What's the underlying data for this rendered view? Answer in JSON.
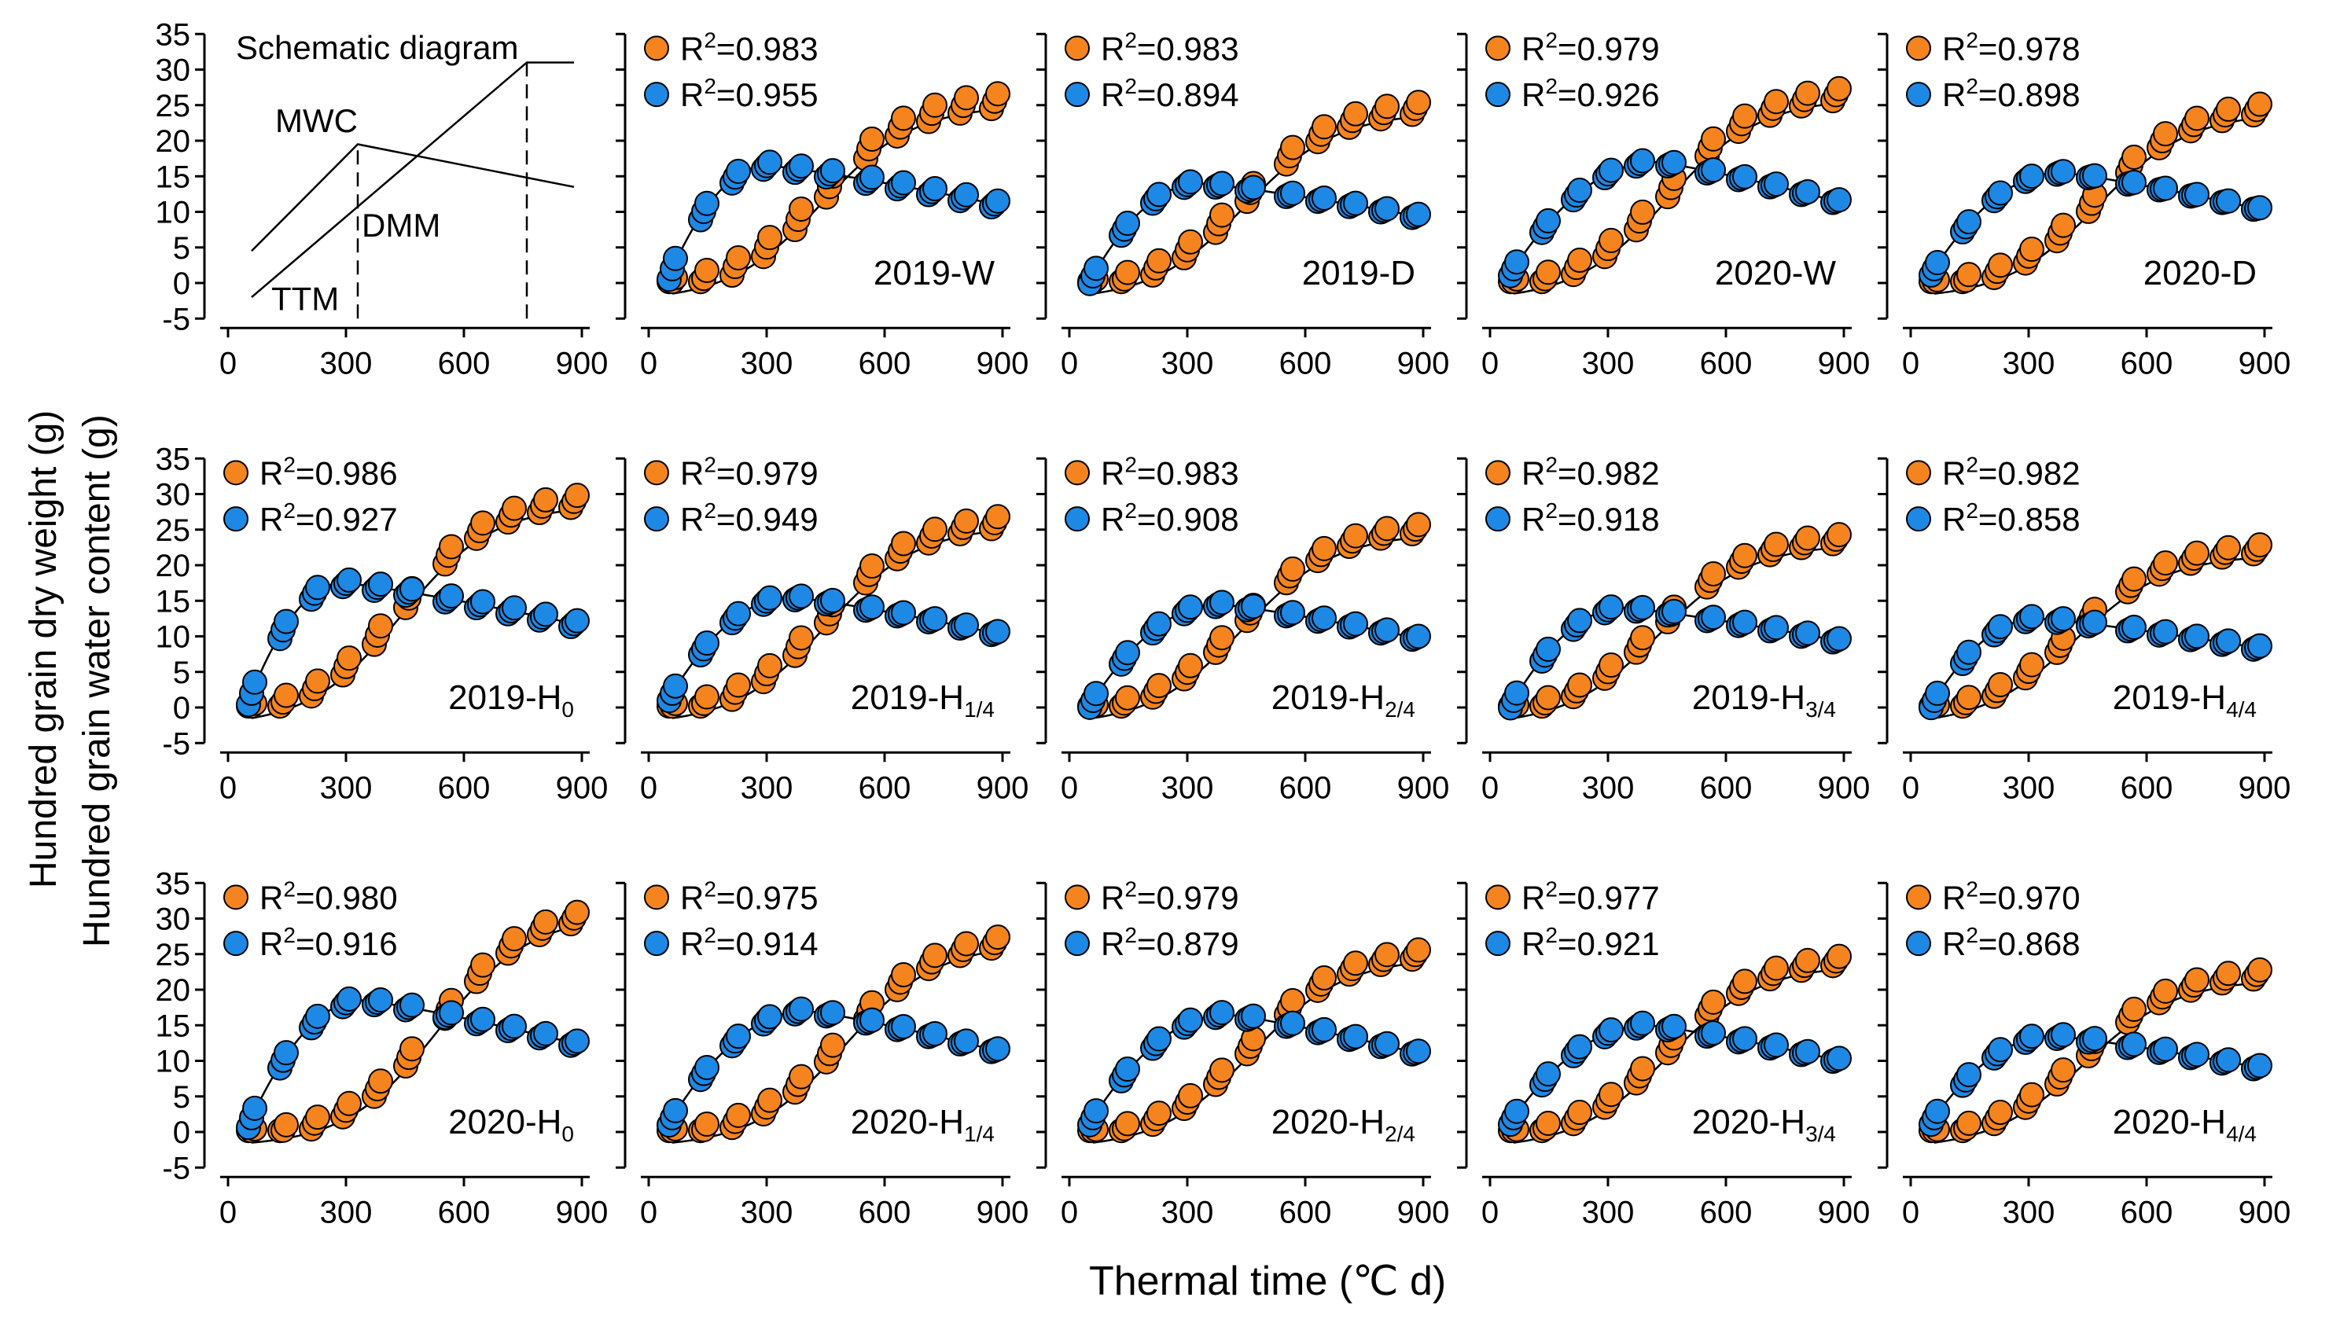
{
  "figure": {
    "ylabel_line1": "Hundred grain dry weight (g)",
    "ylabel_line2": "Hundred grain water content (g)",
    "xlabel": "Thermal time (℃ d)",
    "colors": {
      "dry_weight": "#F5841F",
      "water_content": "#1E88E5",
      "line": "#000000"
    }
  },
  "chart_data": [
    {
      "type": "line",
      "panel": "schematic",
      "title": "Schematic diagram",
      "labels": [
        "MWC",
        "DMM",
        "TTM"
      ],
      "xlim": [
        -60,
        900
      ],
      "ylim": [
        -5,
        35
      ],
      "xticks": [
        0,
        300,
        600,
        900
      ],
      "yticks": [
        -5,
        0,
        5,
        10,
        15,
        20,
        25,
        30,
        35
      ],
      "lines": [
        {
          "name": "DMM",
          "x": [
            60,
            760,
            880
          ],
          "y": [
            -2,
            31,
            31
          ]
        },
        {
          "name": "MWC",
          "x": [
            60,
            330,
            880
          ],
          "y": [
            4.5,
            19.5,
            13.5
          ]
        }
      ],
      "dashed": [
        {
          "x": 330,
          "y": [
            -5,
            19.5
          ]
        },
        {
          "x": 760,
          "y": [
            -5,
            31
          ]
        }
      ]
    },
    {
      "type": "scatter",
      "label": "2019-W",
      "r2": [
        "R²=0.983",
        "R²=0.955"
      ],
      "dmm": 26.5,
      "xtm": 760,
      "ymax": 16.5,
      "xmax": 300,
      "ymin_start": 2,
      "dw_bias": 1.0,
      "mwc_bias": 0.5
    },
    {
      "type": "scatter",
      "label": "2019-D",
      "r2": [
        "R²=0.983",
        "R²=0.894"
      ],
      "dmm": 25.5,
      "xtm": 770,
      "ymax": 14,
      "xmax": 330,
      "ymin_start": 1,
      "dw_bias": 0.8,
      "mwc_bias": 0.3
    },
    {
      "type": "scatter",
      "label": "2020-W",
      "r2": [
        "R²=0.979",
        "R²=0.926"
      ],
      "dmm": 27.5,
      "xtm": 780,
      "ymax": 17,
      "xmax": 420,
      "ymin_start": 2,
      "dw_bias": 0.8,
      "mwc_bias": 0.3
    },
    {
      "type": "scatter",
      "label": "2020-D",
      "r2": [
        "R²=0.978",
        "R²=0.898"
      ],
      "dmm": 25.5,
      "xtm": 820,
      "ymax": 15.5,
      "xmax": 380,
      "ymin_start": 2,
      "dw_bias": 0.7,
      "mwc_bias": 0.2
    },
    {
      "type": "scatter",
      "label": "2019-H",
      "sub": "0",
      "r2": [
        "R²=0.986",
        "R²=0.927"
      ],
      "dmm": 30,
      "xtm": 760,
      "ymax": 17.5,
      "xmax": 290,
      "ymin_start": 2,
      "dw_bias": 0.8,
      "mwc_bias": 0.5
    },
    {
      "type": "scatter",
      "label": "2019-H",
      "sub": "1/4",
      "r2": [
        "R²=0.979",
        "R²=0.949"
      ],
      "dmm": 27,
      "xtm": 780,
      "ymax": 15.5,
      "xmax": 360,
      "ymin_start": 2,
      "dw_bias": 0.8,
      "mwc_bias": 0.3
    },
    {
      "type": "scatter",
      "label": "2019-H",
      "sub": "2/4",
      "r2": [
        "R²=0.983",
        "R²=0.908"
      ],
      "dmm": 26,
      "xtm": 760,
      "ymax": 14.5,
      "xmax": 380,
      "ymin_start": 1,
      "dw_bias": 0.6,
      "mwc_bias": 0.3
    },
    {
      "type": "scatter",
      "label": "2019-H",
      "sub": "3/4",
      "r2": [
        "R²=0.982",
        "R²=0.918"
      ],
      "dmm": 24.5,
      "xtm": 740,
      "ymax": 14,
      "xmax": 340,
      "ymin_start": 1,
      "dw_bias": 0.6,
      "mwc_bias": 0.3
    },
    {
      "type": "scatter",
      "label": "2019-H",
      "sub": "4/4",
      "r2": [
        "R²=0.982",
        "R²=0.858"
      ],
      "dmm": 23,
      "xtm": 720,
      "ymax": 12.5,
      "xmax": 320,
      "ymin_start": 1,
      "dw_bias": 0.6,
      "mwc_bias": 0.3
    },
    {
      "type": "scatter",
      "label": "2020-H",
      "sub": "0",
      "r2": [
        "R²=0.980",
        "R²=0.916"
      ],
      "dmm": 32,
      "xtm": 920,
      "ymax": 18.5,
      "xmax": 340,
      "ymin_start": 2,
      "dw_bias": 0.7,
      "mwc_bias": 0.4
    },
    {
      "type": "scatter",
      "label": "2020-H",
      "sub": "1/4",
      "r2": [
        "R²=0.975",
        "R²=0.914"
      ],
      "dmm": 28,
      "xtm": 860,
      "ymax": 17,
      "xmax": 400,
      "ymin_start": 2,
      "dw_bias": 0.7,
      "mwc_bias": 0.3
    },
    {
      "type": "scatter",
      "label": "2020-H",
      "sub": "2/4",
      "r2": [
        "R²=0.979",
        "R²=0.879"
      ],
      "dmm": 26,
      "xtm": 800,
      "ymax": 16.5,
      "xmax": 400,
      "ymin_start": 2,
      "dw_bias": 0.6,
      "mwc_bias": 0.3
    },
    {
      "type": "scatter",
      "label": "2020-H",
      "sub": "3/4",
      "r2": [
        "R²=0.977",
        "R²=0.921"
      ],
      "dmm": 25,
      "xtm": 780,
      "ymax": 15,
      "xmax": 400,
      "ymin_start": 2,
      "dw_bias": 0.6,
      "mwc_bias": 0.3
    },
    {
      "type": "scatter",
      "label": "2020-H",
      "sub": "4/4",
      "r2": [
        "R²=0.970",
        "R²=0.868"
      ],
      "dmm": 23,
      "xtm": 760,
      "ymax": 13.5,
      "xmax": 360,
      "ymin_start": 2,
      "dw_bias": 0.6,
      "mwc_bias": 0.3
    }
  ]
}
